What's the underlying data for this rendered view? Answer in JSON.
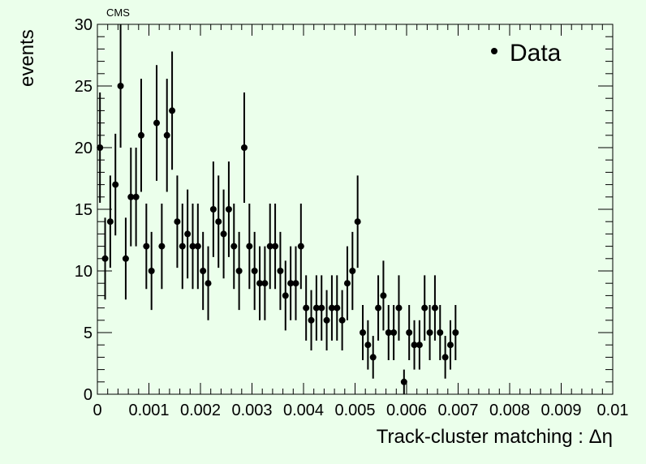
{
  "chart_data": {
    "type": "scatter",
    "banner": "CMS",
    "xlabel": "Track-cluster matching : Δη",
    "ylabel": "events",
    "xlim": [
      0,
      0.01
    ],
    "ylim": [
      0,
      30
    ],
    "grid": false,
    "legend_position": "top-right",
    "x_ticks": [
      0,
      0.001,
      0.002,
      0.003,
      0.004,
      0.005,
      0.006,
      0.007,
      0.008,
      0.009,
      0.01
    ],
    "x_tick_labels": [
      "0",
      "0.001",
      "0.002",
      "0.003",
      "0.004",
      "0.005",
      "0.006",
      "0.007",
      "0.008",
      "0.009",
      "0.01"
    ],
    "y_ticks": [
      0,
      5,
      10,
      15,
      20,
      25,
      30
    ],
    "y_tick_labels": [
      "0",
      "5",
      "10",
      "15",
      "20",
      "25",
      "30"
    ],
    "bin_width": 0.0001,
    "series": [
      {
        "name": "Data",
        "marker": "filled-circle",
        "color": "#000000",
        "error_bars": "poisson",
        "x": [
          5e-05,
          0.00015,
          0.00025,
          0.00035,
          0.00045,
          0.00055,
          0.00065,
          0.00075,
          0.00085,
          0.00095,
          0.00105,
          0.00115,
          0.00125,
          0.00135,
          0.00145,
          0.00155,
          0.00165,
          0.00175,
          0.00185,
          0.00195,
          0.00205,
          0.00215,
          0.00225,
          0.00235,
          0.00245,
          0.00255,
          0.00265,
          0.00275,
          0.00285,
          0.00295,
          0.00305,
          0.00315,
          0.00325,
          0.00335,
          0.00345,
          0.00355,
          0.00365,
          0.00375,
          0.00385,
          0.00395,
          0.00405,
          0.00415,
          0.00425,
          0.00435,
          0.00445,
          0.00455,
          0.00465,
          0.00475,
          0.00485,
          0.00495,
          0.00505,
          0.00515,
          0.00525,
          0.00535,
          0.00545,
          0.00555,
          0.00565,
          0.00575,
          0.00585,
          0.00595,
          0.00605,
          0.00615,
          0.00625,
          0.00635,
          0.00645,
          0.00655,
          0.00665,
          0.00675,
          0.00685,
          0.00695
        ],
        "values": [
          20,
          11,
          14,
          17,
          25,
          11,
          16,
          16,
          21,
          12,
          10,
          22,
          12,
          21,
          23,
          14,
          12,
          13,
          12,
          12,
          10,
          9,
          15,
          14,
          13,
          15,
          12,
          10,
          20,
          12,
          10,
          9,
          9,
          12,
          12,
          10,
          8,
          9,
          9,
          12,
          7,
          6,
          7,
          7,
          6,
          7,
          7,
          6,
          9,
          10,
          14,
          5,
          4,
          3,
          7,
          8,
          5,
          5,
          7,
          1,
          5,
          4,
          4,
          7,
          5,
          7,
          5,
          3,
          4,
          5
        ]
      }
    ]
  }
}
